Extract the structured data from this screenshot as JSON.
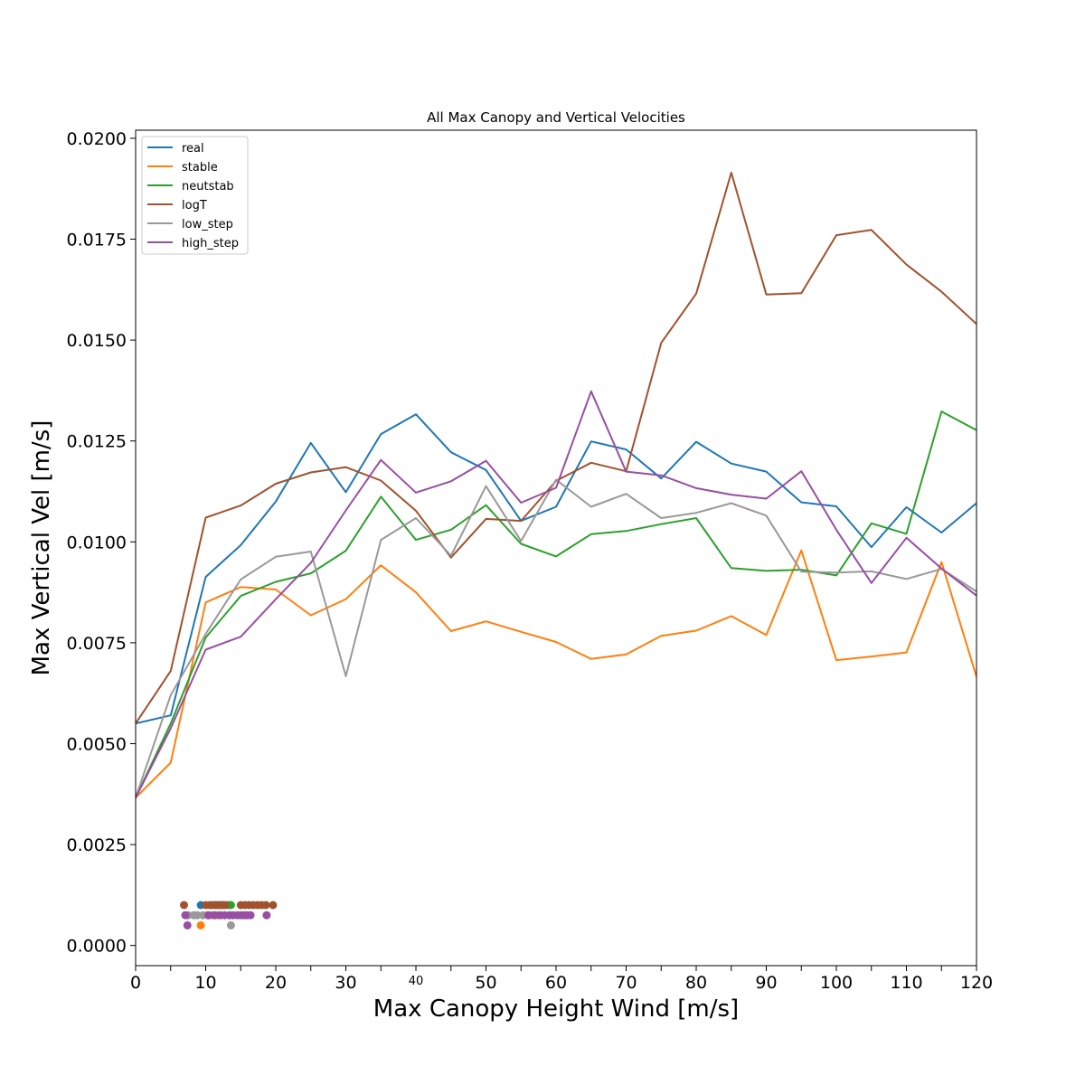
{
  "chart_data": {
    "type": "line",
    "title": "All Max Canopy and Vertical Velocities",
    "xlabel": "Max Canopy Height Wind [m/s]",
    "ylabel": "Max Vertical Vel [m/s]",
    "xlim": [
      0,
      120
    ],
    "ylim": [
      -0.0005,
      0.0202
    ],
    "grid": false,
    "legend_position": "top-left",
    "x_ticks": [
      {
        "value": 0,
        "label": "0"
      },
      {
        "value": 10,
        "label": "10"
      },
      {
        "value": 20,
        "label": "20"
      },
      {
        "value": 30,
        "label": "30"
      },
      {
        "value": 40,
        "label": "40"
      },
      {
        "value": 50,
        "label": "50"
      },
      {
        "value": 60,
        "label": "60"
      },
      {
        "value": 70,
        "label": "70"
      },
      {
        "value": 80,
        "label": "80"
      },
      {
        "value": 90,
        "label": "90"
      },
      {
        "value": 100,
        "label": "100"
      },
      {
        "value": 110,
        "label": "110"
      },
      {
        "value": 120,
        "label": "120"
      }
    ],
    "x_minor_ticks": [
      5,
      15,
      25,
      35,
      45,
      55,
      65,
      75,
      85,
      95,
      105,
      115
    ],
    "y_ticks": [
      {
        "value": 0.0,
        "label": "0.0000"
      },
      {
        "value": 0.0025,
        "label": "0.0025"
      },
      {
        "value": 0.005,
        "label": "0.0050"
      },
      {
        "value": 0.0075,
        "label": "0.0075"
      },
      {
        "value": 0.01,
        "label": "0.0100"
      },
      {
        "value": 0.0125,
        "label": "0.0125"
      },
      {
        "value": 0.015,
        "label": "0.0150"
      },
      {
        "value": 0.0175,
        "label": "0.0175"
      },
      {
        "value": 0.02,
        "label": "0.0200"
      }
    ],
    "x": [
      0,
      5,
      10,
      15,
      20,
      25,
      30,
      35,
      40,
      45,
      50,
      55,
      60,
      65,
      70,
      75,
      80,
      85,
      90,
      95,
      100,
      105,
      110,
      115,
      120
    ],
    "series": [
      {
        "name": "real",
        "color": "#1f77b4",
        "values": [
          0.0055,
          0.0057,
          0.00913,
          0.00992,
          0.011,
          0.01245,
          0.01123,
          0.01267,
          0.01316,
          0.01222,
          0.01178,
          0.01052,
          0.01087,
          0.01249,
          0.01229,
          0.01157,
          0.01248,
          0.01194,
          0.01174,
          0.01098,
          0.01088,
          0.00987,
          0.01086,
          0.01023,
          0.01096
        ]
      },
      {
        "name": "stable",
        "color": "#ff7f0e",
        "values": [
          0.00366,
          0.00453,
          0.0085,
          0.00888,
          0.00882,
          0.00818,
          0.00858,
          0.00942,
          0.00875,
          0.00779,
          0.00803,
          0.00777,
          0.00752,
          0.0071,
          0.00721,
          0.00767,
          0.0078,
          0.00816,
          0.00769,
          0.00979,
          0.00707,
          0.00716,
          0.00726,
          0.0095,
          0.00666
        ]
      },
      {
        "name": "neutstab",
        "color": "#2ca02c",
        "values": [
          0.00366,
          0.0055,
          0.00763,
          0.00866,
          0.00901,
          0.00922,
          0.00978,
          0.01112,
          0.01005,
          0.0103,
          0.01091,
          0.00995,
          0.00964,
          0.01019,
          0.01027,
          0.01044,
          0.01059,
          0.00935,
          0.00928,
          0.00931,
          0.00917,
          0.01046,
          0.0102,
          0.01323,
          0.01277
        ]
      },
      {
        "name": "logT",
        "color": "#a0522d",
        "values": [
          0.0055,
          0.0068,
          0.0106,
          0.0109,
          0.01144,
          0.01172,
          0.01185,
          0.01152,
          0.01077,
          0.00961,
          0.01057,
          0.01052,
          0.01151,
          0.01196,
          0.01175,
          0.01493,
          0.01615,
          0.01915,
          0.01613,
          0.01616,
          0.0176,
          0.01773,
          0.01687,
          0.0162,
          0.0154
        ]
      },
      {
        "name": "low_step",
        "color": "#999999",
        "values": [
          0.00366,
          0.0062,
          0.00772,
          0.00907,
          0.00963,
          0.00976,
          0.00667,
          0.01005,
          0.01059,
          0.00966,
          0.01138,
          0.01002,
          0.01154,
          0.01087,
          0.01119,
          0.01059,
          0.01072,
          0.01096,
          0.01065,
          0.00926,
          0.00924,
          0.00927,
          0.00908,
          0.00933,
          0.00877
        ]
      },
      {
        "name": "high_step",
        "color": "#984ea3",
        "values": [
          0.00366,
          0.00538,
          0.00733,
          0.00765,
          0.00858,
          0.00948,
          0.01078,
          0.01203,
          0.01122,
          0.0115,
          0.01201,
          0.01097,
          0.01134,
          0.01373,
          0.01174,
          0.01165,
          0.01133,
          0.01117,
          0.01107,
          0.01175,
          0.0103,
          0.00898,
          0.0101,
          0.00934,
          0.00867
        ]
      }
    ],
    "scatter_points": [
      {
        "series": "real",
        "color": "#1f77b4",
        "y": 0.001,
        "x": [
          9.3,
          10.6,
          11.4,
          12.5
        ]
      },
      {
        "series": "stable",
        "color": "#ff7f0e",
        "y": 0.0005,
        "x": [
          9.3
        ]
      },
      {
        "series": "stable",
        "color": "#ff7f0e",
        "y": 0.00075,
        "x": [
          10.3,
          11.8
        ]
      },
      {
        "series": "neutstab",
        "color": "#2ca02c",
        "y": 0.001,
        "x": [
          12.0,
          13.2,
          13.6
        ]
      },
      {
        "series": "logT",
        "color": "#a0522d",
        "y": 0.001,
        "x": [
          6.9,
          10.0,
          10.8,
          11.2,
          11.7,
          12.3,
          12.8,
          15.0,
          15.6,
          16.2,
          16.8,
          17.4,
          18.0,
          18.6,
          19.6
        ]
      },
      {
        "series": "low_step",
        "color": "#999999",
        "y": 0.00075,
        "x": [
          7.5,
          8.3,
          8.8,
          9.6,
          10.9
        ]
      },
      {
        "series": "low_step",
        "color": "#999999",
        "y": 0.0005,
        "x": [
          13.6
        ]
      },
      {
        "series": "high_step",
        "color": "#984ea3",
        "y": 0.00075,
        "x": [
          7.1,
          10.4,
          11.3,
          12.1,
          12.7,
          13.4,
          13.9,
          14.5,
          15.0,
          15.5,
          15.9,
          16.4,
          18.7
        ]
      },
      {
        "series": "high_step",
        "color": "#984ea3",
        "y": 0.0005,
        "x": [
          7.4
        ]
      }
    ]
  }
}
